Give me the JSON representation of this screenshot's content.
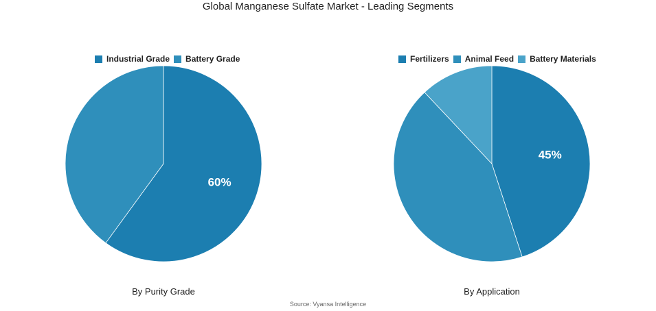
{
  "title": "Global Manganese Sulfate Market - Leading Segments",
  "source": "Source: Vyansa Intelligence",
  "chart_data": [
    {
      "type": "pie",
      "subtitle": "By Purity Grade",
      "categories": [
        "Industrial Grade",
        "Battery Grade"
      ],
      "values": [
        60,
        40
      ],
      "colors": [
        "#1c7eb0",
        "#2f8fbb"
      ],
      "data_labels": [
        "60%",
        ""
      ],
      "legend": "top"
    },
    {
      "type": "pie",
      "subtitle": "By Application",
      "categories": [
        "Fertilizers",
        "Animal Feed",
        "Battery Materials"
      ],
      "values": [
        45,
        43,
        12
      ],
      "colors": [
        "#1c7eb0",
        "#2f8fbb",
        "#4aa3c9"
      ],
      "data_labels": [
        "45%",
        "",
        ""
      ],
      "legend": "top"
    }
  ]
}
